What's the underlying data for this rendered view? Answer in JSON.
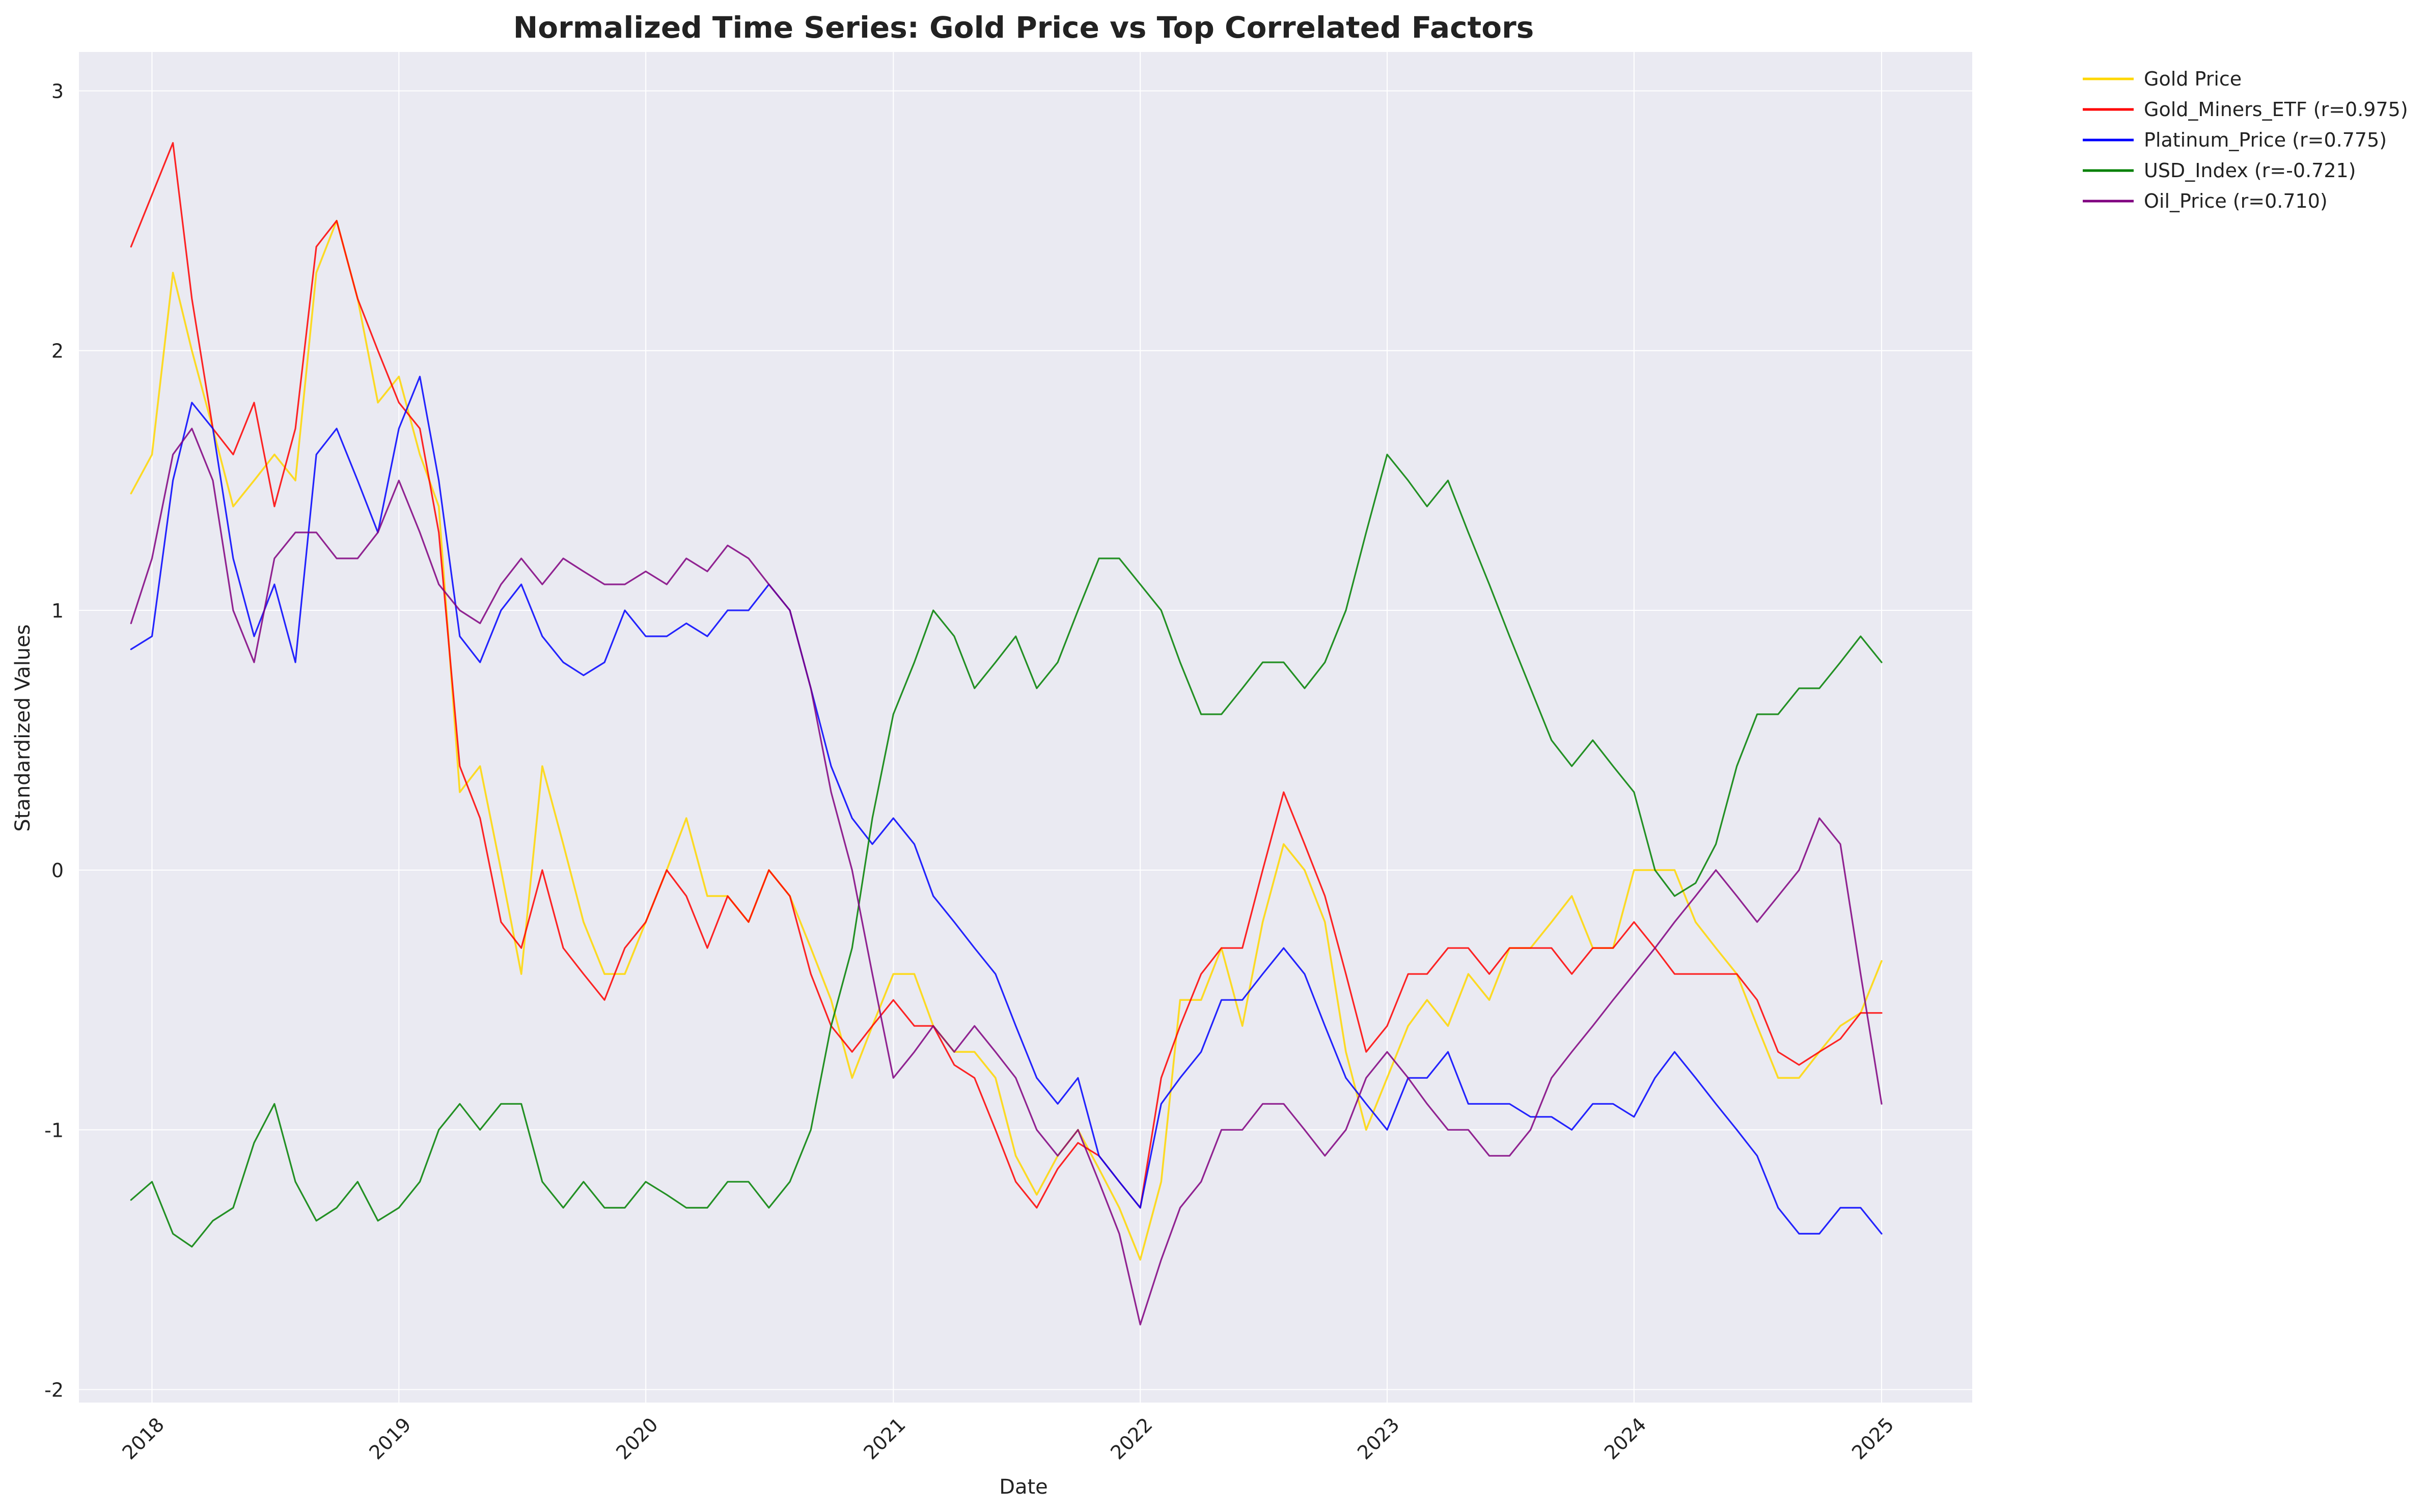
{
  "chart_data": {
    "type": "line",
    "title": "Normalized Time Series: Gold Price vs Top Correlated Factors",
    "xlabel": "Date",
    "ylabel": "Standardized Values",
    "x_ticks": [
      "2018",
      "2019",
      "2020",
      "2021",
      "2022",
      "2023",
      "2024",
      "2025"
    ],
    "y_ticks": [
      "-2",
      "-1",
      "0",
      "1",
      "2",
      "3"
    ],
    "xlim": [
      "2017-09-15",
      "2025-05-15"
    ],
    "ylim": [
      -2.05,
      3.15
    ],
    "grid": true,
    "legend_position": "outside-top-right",
    "background_color": "#eaeaf2",
    "x": [
      "2017-12-01",
      "2018-01-01",
      "2018-02-01",
      "2018-03-01",
      "2018-04-01",
      "2018-05-01",
      "2018-06-01",
      "2018-07-01",
      "2018-08-01",
      "2018-09-01",
      "2018-10-01",
      "2018-11-01",
      "2018-12-01",
      "2019-01-01",
      "2019-02-01",
      "2019-03-01",
      "2019-04-01",
      "2019-05-01",
      "2019-06-01",
      "2019-07-01",
      "2019-08-01",
      "2019-09-01",
      "2019-10-01",
      "2019-11-01",
      "2019-12-01",
      "2020-01-01",
      "2020-02-01",
      "2020-03-01",
      "2020-04-01",
      "2020-05-01",
      "2020-06-01",
      "2020-07-01",
      "2020-08-01",
      "2020-09-01",
      "2020-10-01",
      "2020-11-01",
      "2020-12-01",
      "2021-01-01",
      "2021-02-01",
      "2021-03-01",
      "2021-04-01",
      "2021-05-01",
      "2021-06-01",
      "2021-07-01",
      "2021-08-01",
      "2021-09-01",
      "2021-10-01",
      "2021-11-01",
      "2021-12-01",
      "2022-01-01",
      "2022-02-01",
      "2022-03-01",
      "2022-04-01",
      "2022-05-01",
      "2022-06-01",
      "2022-07-01",
      "2022-08-01",
      "2022-09-01",
      "2022-10-01",
      "2022-11-01",
      "2022-12-01",
      "2023-01-01",
      "2023-02-01",
      "2023-03-01",
      "2023-04-01",
      "2023-05-01",
      "2023-06-01",
      "2023-07-01",
      "2023-08-01",
      "2023-09-01",
      "2023-10-01",
      "2023-11-01",
      "2023-12-01",
      "2024-01-01",
      "2024-02-01",
      "2024-03-01",
      "2024-04-01",
      "2024-05-01",
      "2024-06-01",
      "2024-07-01",
      "2024-08-01",
      "2024-09-01",
      "2024-10-01",
      "2024-11-01",
      "2024-12-01",
      "2025-01-01"
    ],
    "series": [
      {
        "name": "Gold Price",
        "color": "#ffd700",
        "width": 3.6,
        "values": [
          1.45,
          1.6,
          2.3,
          2.0,
          1.7,
          1.4,
          1.5,
          1.6,
          1.5,
          2.3,
          2.5,
          2.2,
          1.8,
          1.9,
          1.6,
          1.4,
          0.3,
          0.4,
          0.0,
          -0.4,
          0.4,
          0.1,
          -0.2,
          -0.4,
          -0.4,
          -0.2,
          0.0,
          0.2,
          -0.1,
          -0.1,
          -0.2,
          0.0,
          -0.1,
          -0.3,
          -0.5,
          -0.8,
          -0.6,
          -0.4,
          -0.4,
          -0.6,
          -0.7,
          -0.7,
          -0.8,
          -1.1,
          -1.25,
          -1.1,
          -1.0,
          -1.15,
          -1.3,
          -1.5,
          -1.2,
          -0.5,
          -0.5,
          -0.3,
          -0.6,
          -0.2,
          0.1,
          0.0,
          -0.2,
          -0.7,
          -1.0,
          -0.8,
          -0.6,
          -0.5,
          -0.6,
          -0.4,
          -0.5,
          -0.3,
          -0.3,
          -0.2,
          -0.1,
          -0.3,
          -0.3,
          0.0,
          0.0,
          0.0,
          -0.2,
          -0.3,
          -0.4,
          -0.6,
          -0.8,
          -0.8,
          -0.7,
          -0.6,
          -0.55,
          -0.35
        ]
      },
      {
        "name": "Gold_Miners_ETF (r=0.975)",
        "color": "#ff0000",
        "width": 3.2,
        "values": [
          2.4,
          2.6,
          2.8,
          2.2,
          1.7,
          1.6,
          1.8,
          1.4,
          1.7,
          2.4,
          2.5,
          2.2,
          2.0,
          1.8,
          1.7,
          1.3,
          0.4,
          0.2,
          -0.2,
          -0.3,
          0.0,
          -0.3,
          -0.4,
          -0.5,
          -0.3,
          -0.2,
          0.0,
          -0.1,
          -0.3,
          -0.1,
          -0.2,
          0.0,
          -0.1,
          -0.4,
          -0.6,
          -0.7,
          -0.6,
          -0.5,
          -0.6,
          -0.6,
          -0.75,
          -0.8,
          -1.0,
          -1.2,
          -1.3,
          -1.15,
          -1.05,
          -1.1,
          -1.2,
          -1.3,
          -0.8,
          -0.6,
          -0.4,
          -0.3,
          -0.3,
          0.0,
          0.3,
          0.1,
          -0.1,
          -0.4,
          -0.7,
          -0.6,
          -0.4,
          -0.4,
          -0.3,
          -0.3,
          -0.4,
          -0.3,
          -0.3,
          -0.3,
          -0.4,
          -0.3,
          -0.3,
          -0.2,
          -0.3,
          -0.4,
          -0.4,
          -0.4,
          -0.4,
          -0.5,
          -0.7,
          -0.75,
          -0.7,
          -0.65,
          -0.55,
          -0.55
        ]
      },
      {
        "name": "Platinum_Price (r=0.775)",
        "color": "#0000ff",
        "width": 3.2,
        "values": [
          0.85,
          0.9,
          1.5,
          1.8,
          1.7,
          1.2,
          0.9,
          1.1,
          0.8,
          1.6,
          1.7,
          1.5,
          1.3,
          1.7,
          1.9,
          1.5,
          0.9,
          0.8,
          1.0,
          1.1,
          0.9,
          0.8,
          0.75,
          0.8,
          1.0,
          0.9,
          0.9,
          0.95,
          0.9,
          1.0,
          1.0,
          1.1,
          1.0,
          0.7,
          0.4,
          0.2,
          0.1,
          0.2,
          0.1,
          -0.1,
          -0.2,
          -0.3,
          -0.4,
          -0.6,
          -0.8,
          -0.9,
          -0.8,
          -1.1,
          -1.2,
          -1.3,
          -0.9,
          -0.8,
          -0.7,
          -0.5,
          -0.5,
          -0.4,
          -0.3,
          -0.4,
          -0.6,
          -0.8,
          -0.9,
          -1.0,
          -0.8,
          -0.8,
          -0.7,
          -0.9,
          -0.9,
          -0.9,
          -0.95,
          -0.95,
          -1.0,
          -0.9,
          -0.9,
          -0.95,
          -0.8,
          -0.7,
          -0.8,
          -0.9,
          -1.0,
          -1.1,
          -1.3,
          -1.4,
          -1.4,
          -1.3,
          -1.3,
          -1.4
        ]
      },
      {
        "name": "USD_Index (r=-0.721)",
        "color": "#008000",
        "width": 3.2,
        "values": [
          -1.27,
          -1.2,
          -1.4,
          -1.45,
          -1.35,
          -1.3,
          -1.05,
          -0.9,
          -1.2,
          -1.35,
          -1.3,
          -1.2,
          -1.35,
          -1.3,
          -1.2,
          -1.0,
          -0.9,
          -1.0,
          -0.9,
          -0.9,
          -1.2,
          -1.3,
          -1.2,
          -1.3,
          -1.3,
          -1.2,
          -1.25,
          -1.3,
          -1.3,
          -1.2,
          -1.2,
          -1.3,
          -1.2,
          -1.0,
          -0.6,
          -0.3,
          0.2,
          0.6,
          0.8,
          1.0,
          0.9,
          0.7,
          0.8,
          0.9,
          0.7,
          0.8,
          1.0,
          1.2,
          1.2,
          1.1,
          1.0,
          0.8,
          0.6,
          0.6,
          0.7,
          0.8,
          0.8,
          0.7,
          0.8,
          1.0,
          1.3,
          1.6,
          1.5,
          1.4,
          1.5,
          1.3,
          1.1,
          0.9,
          0.7,
          0.5,
          0.4,
          0.5,
          0.4,
          0.3,
          0.0,
          -0.1,
          -0.05,
          0.1,
          0.4,
          0.6,
          0.6,
          0.7,
          0.7,
          0.8,
          0.9,
          0.8
        ]
      },
      {
        "name": "Oil_Price (r=0.710)",
        "color": "#800080",
        "width": 3.2,
        "values": [
          0.95,
          1.2,
          1.6,
          1.7,
          1.5,
          1.0,
          0.8,
          1.2,
          1.3,
          1.3,
          1.2,
          1.2,
          1.3,
          1.5,
          1.3,
          1.1,
          1.0,
          0.95,
          1.1,
          1.2,
          1.1,
          1.2,
          1.15,
          1.1,
          1.1,
          1.15,
          1.1,
          1.2,
          1.15,
          1.25,
          1.2,
          1.1,
          1.0,
          0.7,
          0.3,
          0.0,
          -0.4,
          -0.8,
          -0.7,
          -0.6,
          -0.7,
          -0.6,
          -0.7,
          -0.8,
          -1.0,
          -1.1,
          -1.0,
          -1.2,
          -1.4,
          -1.75,
          -1.5,
          -1.3,
          -1.2,
          -1.0,
          -1.0,
          -0.9,
          -0.9,
          -1.0,
          -1.1,
          -1.0,
          -0.8,
          -0.7,
          -0.8,
          -0.9,
          -1.0,
          -1.0,
          -1.1,
          -1.1,
          -1.0,
          -0.8,
          -0.7,
          -0.6,
          -0.5,
          -0.4,
          -0.3,
          -0.2,
          -0.1,
          0.0,
          -0.1,
          -0.2,
          -0.1,
          0.0,
          0.2,
          0.1,
          -0.4,
          -0.9
        ]
      }
    ]
  }
}
